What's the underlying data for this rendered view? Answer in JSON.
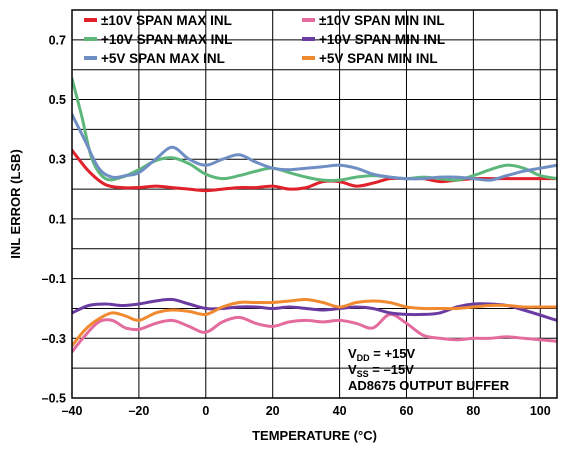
{
  "chart_data": {
    "type": "line",
    "title": "",
    "xlabel": "TEMPERATURE (°C)",
    "ylabel": "INL ERROR (LSB)",
    "xlim": [
      -40,
      105
    ],
    "ylim": [
      -0.5,
      0.8
    ],
    "xticks": [
      -40,
      -20,
      0,
      20,
      40,
      60,
      80,
      100
    ],
    "xtick_labels": [
      "–40",
      "–20",
      "0",
      "20",
      "40",
      "60",
      "80",
      "100"
    ],
    "yticks": [
      -0.5,
      -0.3,
      -0.1,
      0.1,
      0.3,
      0.5,
      0.7
    ],
    "ytick_labels": [
      "–0.5",
      "–0.3",
      "–0.1",
      "0.1",
      "0.3",
      "0.5",
      "0.7"
    ],
    "grid": true,
    "legend_position": "top",
    "series": [
      {
        "name": "±10V SPAN MAX INL",
        "color": "#e0202a",
        "x": [
          -40,
          -35,
          -30,
          -25,
          -20,
          -15,
          -10,
          -5,
          0,
          5,
          10,
          15,
          20,
          25,
          30,
          35,
          40,
          45,
          50,
          55,
          60,
          65,
          70,
          75,
          80,
          85,
          90,
          95,
          105
        ],
        "y": [
          0.33,
          0.26,
          0.215,
          0.205,
          0.205,
          0.21,
          0.205,
          0.2,
          0.195,
          0.2,
          0.205,
          0.205,
          0.21,
          0.2,
          0.205,
          0.225,
          0.225,
          0.21,
          0.22,
          0.235,
          0.235,
          0.235,
          0.225,
          0.23,
          0.235,
          0.235,
          0.235,
          0.235,
          0.235
        ]
      },
      {
        "name": "+10V SPAN MAX INL",
        "color": "#5db77a",
        "x": [
          -40,
          -37,
          -34,
          -30,
          -25,
          -20,
          -15,
          -10,
          -5,
          0,
          5,
          10,
          15,
          20,
          25,
          30,
          35,
          40,
          45,
          50,
          55,
          60,
          65,
          70,
          75,
          80,
          85,
          90,
          95,
          100,
          105
        ],
        "y": [
          0.57,
          0.44,
          0.3,
          0.235,
          0.24,
          0.265,
          0.295,
          0.305,
          0.285,
          0.25,
          0.235,
          0.245,
          0.26,
          0.27,
          0.255,
          0.24,
          0.23,
          0.23,
          0.24,
          0.245,
          0.24,
          0.235,
          0.24,
          0.235,
          0.23,
          0.245,
          0.265,
          0.28,
          0.27,
          0.245,
          0.235
        ]
      },
      {
        "name": "+5V SPAN MAX INL",
        "color": "#6f8fc4",
        "x": [
          -40,
          -36,
          -32,
          -28,
          -24,
          -20,
          -15,
          -10,
          -5,
          0,
          5,
          10,
          15,
          20,
          25,
          30,
          35,
          40,
          45,
          50,
          55,
          60,
          65,
          70,
          75,
          80,
          85,
          90,
          95,
          100,
          105
        ],
        "y": [
          0.45,
          0.36,
          0.27,
          0.24,
          0.245,
          0.255,
          0.3,
          0.34,
          0.3,
          0.28,
          0.3,
          0.315,
          0.29,
          0.27,
          0.265,
          0.27,
          0.275,
          0.28,
          0.27,
          0.25,
          0.24,
          0.235,
          0.235,
          0.24,
          0.24,
          0.235,
          0.23,
          0.245,
          0.26,
          0.27,
          0.28
        ]
      },
      {
        "name": "±10V SPAN MIN INL",
        "color": "#e36b9e",
        "x": [
          -40,
          -36,
          -32,
          -28,
          -24,
          -20,
          -15,
          -10,
          -5,
          0,
          5,
          10,
          15,
          20,
          25,
          30,
          35,
          40,
          45,
          50,
          55,
          60,
          65,
          70,
          75,
          80,
          85,
          90,
          95,
          100,
          105
        ],
        "y": [
          -0.345,
          -0.29,
          -0.245,
          -0.24,
          -0.265,
          -0.27,
          -0.25,
          -0.24,
          -0.26,
          -0.28,
          -0.245,
          -0.23,
          -0.25,
          -0.26,
          -0.245,
          -0.24,
          -0.245,
          -0.24,
          -0.25,
          -0.265,
          -0.22,
          -0.25,
          -0.29,
          -0.3,
          -0.305,
          -0.3,
          -0.3,
          -0.295,
          -0.3,
          -0.305,
          -0.31
        ]
      },
      {
        "name": "+10V SPAN MIN INL",
        "color": "#6a3ba0",
        "x": [
          -40,
          -35,
          -30,
          -25,
          -20,
          -15,
          -10,
          -5,
          0,
          5,
          10,
          15,
          20,
          25,
          30,
          35,
          40,
          45,
          50,
          55,
          60,
          65,
          70,
          75,
          80,
          85,
          90,
          95,
          105
        ],
        "y": [
          -0.215,
          -0.19,
          -0.185,
          -0.19,
          -0.185,
          -0.175,
          -0.17,
          -0.185,
          -0.2,
          -0.2,
          -0.195,
          -0.195,
          -0.2,
          -0.195,
          -0.2,
          -0.205,
          -0.2,
          -0.195,
          -0.2,
          -0.215,
          -0.22,
          -0.22,
          -0.215,
          -0.195,
          -0.185,
          -0.185,
          -0.19,
          -0.205,
          -0.24
        ]
      },
      {
        "name": "+5V SPAN MIN INL",
        "color": "#f08a30",
        "x": [
          -40,
          -36,
          -32,
          -28,
          -24,
          -20,
          -15,
          -10,
          -5,
          0,
          5,
          10,
          15,
          20,
          25,
          30,
          35,
          40,
          45,
          50,
          55,
          60,
          65,
          70,
          75,
          80,
          85,
          90,
          95,
          100,
          105
        ],
        "y": [
          -0.325,
          -0.27,
          -0.235,
          -0.215,
          -0.225,
          -0.24,
          -0.215,
          -0.205,
          -0.21,
          -0.22,
          -0.195,
          -0.18,
          -0.18,
          -0.18,
          -0.175,
          -0.17,
          -0.18,
          -0.195,
          -0.18,
          -0.175,
          -0.18,
          -0.195,
          -0.2,
          -0.2,
          -0.2,
          -0.195,
          -0.19,
          -0.19,
          -0.195,
          -0.195,
          -0.195
        ]
      }
    ],
    "annotations": [
      {
        "main": "V",
        "sub": "DD",
        "rest": " = +15V"
      },
      {
        "main": "V",
        "sub": "SS",
        "rest": " = –15V"
      },
      {
        "main": "AD8675 OUTPUT BUFFER",
        "sub": "",
        "rest": ""
      }
    ]
  }
}
